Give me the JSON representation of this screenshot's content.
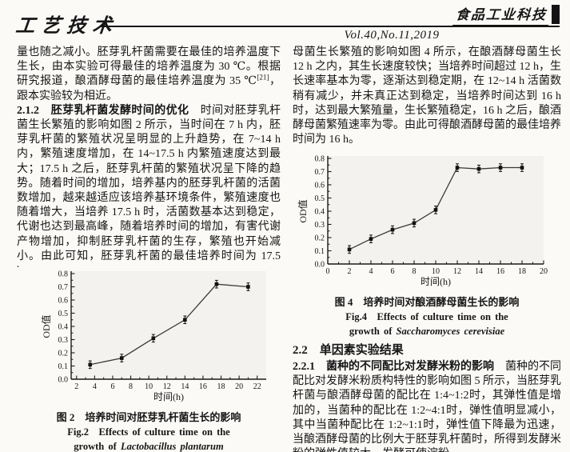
{
  "header": {
    "section_logo": "工艺技术",
    "journal_logo": "食品工业科技",
    "volume": "Vol.40,No.11,2019"
  },
  "left_column": {
    "para1": "量也随之减小。胚芽乳杆菌需要在最佳的培养温度下生长，由本实验可得最佳的培养温度为 30 ℃。根据研究报道，酿酒酵母菌的最佳培养温度为 35 ℃",
    "citation": "[21]",
    "para1_end": "，跟本实验较为相近。",
    "heading_212": "2.1.2　胚芽乳杆菌发酵时间的优化",
    "para2": "　时间对胚芽乳杆菌生长繁殖的影响如图 2 所示，当时间在 7 h 内，胚芽乳杆菌的繁殖状况呈明显的上升趋势，在 7~14 h 内，繁殖速度增加，在 14~17.5 h 内繁殖速度达到最大；17.5 h 之后，胚芽乳杆菌的繁殖状况呈下降的趋势。随着时间的增加，培养基内的胚芽乳杆菌的活菌数增加，越来越适应该培养基环境条件，繁殖速度也随着增大，当培养 17.5 h 时，活菌数基本达到稳定，代谢也达到最高峰，随着培养时间的增加，有害代谢产物增加，抑制胚芽乳杆菌的生存，繁殖也开始减小。由此可知，胚芽乳杆菌的最佳培养时间为 17.5 h。"
  },
  "right_column": {
    "para1": "母菌生长繁殖的影响如图 4 所示，在酿酒酵母菌生长 12 h 之内，其生长速度较快；当培养时间超过 12 h，生长速率基本为零，逐渐达到稳定期，在 12~14 h 活菌数稍有减少，并未真正达到稳定，当培养时间达到 16 h 时，达到最大繁殖量，生长繁殖稳定，16 h 之后，酿酒酵母菌繁殖速率为零。由此可得酿酒酵母菌的最佳培养时间为 16 h。",
    "heading_22": "2.2　单因素实验结果",
    "heading_221": "2.2.1　菌种的不同配比对发酵米粉的影响",
    "para2": "　菌种的不同配比对发酵米粉质构特性的影响如图 5 所示，当胚芽乳杆菌与酿酒酵母菌的配比在 1:4~1:2时，其弹性值是增加的，当菌种的配比在 1:2~4:1时，弹性值明显减小，其中当菌种配比在 1:2~1:1时，弹性值下降最为迅速，当酿酒酵母菌的比例大于胚芽乳杆菌时，所得到发酵米粉的弹性值较大，发酵可使淀粉"
  },
  "figures": {
    "fig2": {
      "caption_cn": "图 2　培养时间对胚芽乳杆菌生长的影响",
      "caption_en_line1": "Fig.2　Effects of culture time on the",
      "caption_en_line2_prefix": "growth of ",
      "caption_en_species": "Lactobacillus plantarum"
    },
    "fig4": {
      "caption_cn": "图 4　培养时间对酿酒酵母菌生长的影响",
      "caption_en_line1": "Fig.4　Effects of culture time on the",
      "caption_en_line2_prefix": "growth of ",
      "caption_en_species": "Saccharomyces cerevisiae"
    }
  },
  "chart_data": [
    {
      "type": "line",
      "title": "培养时间对胚芽乳杆菌生长的影响",
      "x": [
        3.5,
        7,
        10.5,
        14,
        17.5,
        21
      ],
      "y": [
        0.11,
        0.16,
        0.31,
        0.45,
        0.72,
        0.7
      ],
      "xlabel": "时间(h)",
      "ylabel": "OD值",
      "xlim": [
        1.4,
        23
      ],
      "ylim": [
        0,
        0.8
      ],
      "xticks": [
        2,
        4,
        6,
        8,
        10,
        12,
        14,
        16,
        18,
        20,
        22
      ],
      "yticks": [
        0.0,
        0.1,
        0.2,
        0.3,
        0.4,
        0.5,
        0.6,
        0.7,
        0.8
      ],
      "marker": "square",
      "error_bar": 0.02,
      "line_color": "#3a3a3a",
      "legend": null,
      "grid": false
    },
    {
      "type": "line",
      "title": "培养时间对酿酒酵母菌生长的影响",
      "x": [
        2,
        4,
        6,
        8,
        10,
        12,
        14,
        16,
        18
      ],
      "y": [
        0.11,
        0.19,
        0.26,
        0.31,
        0.41,
        0.73,
        0.72,
        0.73,
        0.73
      ],
      "xlabel": "时间(h)",
      "ylabel": "OD值",
      "xlim": [
        0,
        20
      ],
      "ylim": [
        0,
        0.8
      ],
      "xticks": [
        0,
        2,
        4,
        6,
        8,
        10,
        12,
        14,
        16,
        18,
        20
      ],
      "yticks": [
        0.0,
        0.1,
        0.2,
        0.3,
        0.4,
        0.5,
        0.6,
        0.7,
        0.8
      ],
      "marker": "square",
      "error_bar": 0.02,
      "line_color": "#3a3a3a",
      "legend": null,
      "grid": false
    }
  ]
}
